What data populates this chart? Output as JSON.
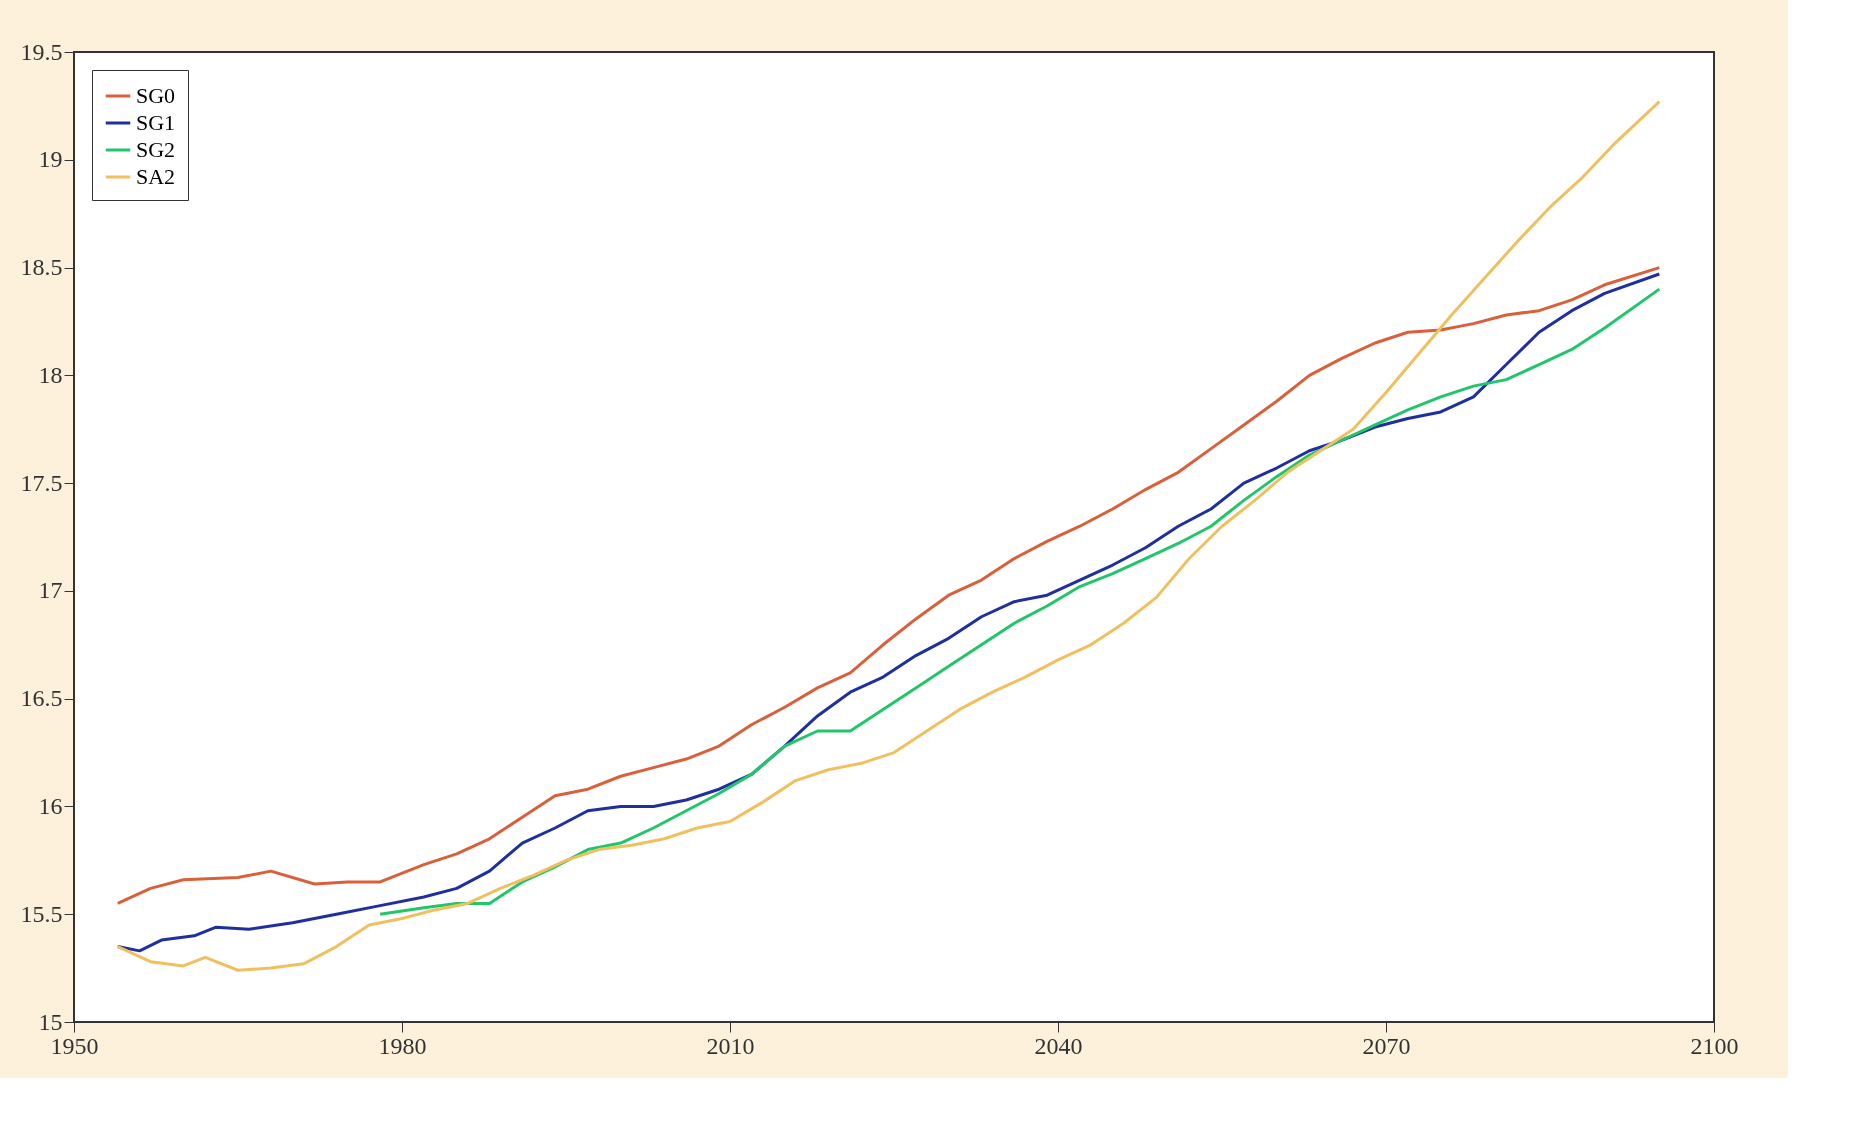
{
  "chart_data": {
    "type": "line",
    "xlim": [
      1950,
      2100
    ],
    "ylim": [
      15,
      19.5
    ],
    "xticks": [
      1950,
      1980,
      2010,
      2040,
      2070,
      2100
    ],
    "yticks": [
      15,
      15.5,
      16,
      16.5,
      17,
      17.5,
      18,
      18.5,
      19,
      19.5
    ],
    "grid": false,
    "legend": "top left",
    "line_style": "solid",
    "marker": "none",
    "series": [
      {
        "name": "SG0",
        "color": "#d9603a",
        "x": [
          1954,
          1957,
          1960,
          1965,
          1968,
          1972,
          1975,
          1978,
          1982,
          1985,
          1988,
          1991,
          1994,
          1997,
          2000,
          2003,
          2006,
          2009,
          2012,
          2015,
          2018,
          2021,
          2024,
          2027,
          2030,
          2033,
          2036,
          2039,
          2042,
          2045,
          2048,
          2051,
          2054,
          2057,
          2060,
          2063,
          2066,
          2069,
          2072,
          2075,
          2078,
          2081,
          2084,
          2087,
          2090,
          2095
        ],
        "values": [
          15.55,
          15.62,
          15.66,
          15.67,
          15.7,
          15.64,
          15.65,
          15.65,
          15.73,
          15.78,
          15.85,
          15.95,
          16.05,
          16.08,
          16.14,
          16.18,
          16.22,
          16.28,
          16.38,
          16.46,
          16.55,
          16.62,
          16.75,
          16.87,
          16.98,
          17.05,
          17.15,
          17.23,
          17.3,
          17.38,
          17.47,
          17.55,
          17.66,
          17.77,
          17.88,
          18.0,
          18.08,
          18.15,
          18.2,
          18.21,
          18.24,
          18.28,
          18.3,
          18.35,
          18.42,
          18.5
        ]
      },
      {
        "name": "SG1",
        "color": "#1f2fa0",
        "x": [
          1954,
          1956,
          1958,
          1961,
          1963,
          1966,
          1970,
          1974,
          1978,
          1982,
          1985,
          1988,
          1991,
          1994,
          1997,
          2000,
          2003,
          2006,
          2009,
          2012,
          2015,
          2018,
          2021,
          2024,
          2027,
          2030,
          2033,
          2036,
          2039,
          2042,
          2045,
          2048,
          2051,
          2054,
          2057,
          2060,
          2063,
          2066,
          2069,
          2072,
          2075,
          2078,
          2081,
          2084,
          2087,
          2090,
          2095
        ],
        "values": [
          15.35,
          15.33,
          15.38,
          15.4,
          15.44,
          15.43,
          15.46,
          15.5,
          15.54,
          15.58,
          15.62,
          15.7,
          15.83,
          15.9,
          15.98,
          16.0,
          16.0,
          16.03,
          16.08,
          16.15,
          16.28,
          16.42,
          16.53,
          16.6,
          16.7,
          16.78,
          16.88,
          16.95,
          16.98,
          17.05,
          17.12,
          17.2,
          17.3,
          17.38,
          17.5,
          17.57,
          17.65,
          17.7,
          17.76,
          17.8,
          17.83,
          17.9,
          18.05,
          18.2,
          18.3,
          18.38,
          18.47
        ]
      },
      {
        "name": "SG2",
        "color": "#22c66a",
        "x": [
          1978,
          1982,
          1985,
          1988,
          1991,
          1994,
          1997,
          2000,
          2003,
          2006,
          2009,
          2012,
          2015,
          2018,
          2021,
          2024,
          2027,
          2030,
          2033,
          2036,
          2039,
          2042,
          2045,
          2048,
          2051,
          2054,
          2057,
          2060,
          2063,
          2066,
          2069,
          2072,
          2075,
          2078,
          2081,
          2084,
          2087,
          2090,
          2095
        ],
        "values": [
          15.5,
          15.53,
          15.55,
          15.55,
          15.65,
          15.72,
          15.8,
          15.83,
          15.9,
          15.98,
          16.06,
          16.15,
          16.28,
          16.35,
          16.35,
          16.45,
          16.55,
          16.65,
          16.75,
          16.85,
          16.93,
          17.02,
          17.08,
          17.15,
          17.22,
          17.3,
          17.42,
          17.53,
          17.63,
          17.7,
          17.77,
          17.84,
          17.9,
          17.95,
          17.98,
          18.05,
          18.12,
          18.22,
          18.4
        ]
      },
      {
        "name": "SA2",
        "color": "#f0c060",
        "x": [
          1954,
          1957,
          1960,
          1962,
          1965,
          1968,
          1971,
          1974,
          1977,
          1980,
          1983,
          1986,
          1989,
          1992,
          1995,
          1998,
          2001,
          2004,
          2007,
          2010,
          2013,
          2016,
          2019,
          2022,
          2025,
          2028,
          2031,
          2034,
          2037,
          2040,
          2043,
          2046,
          2049,
          2052,
          2055,
          2058,
          2061,
          2064,
          2067,
          2070,
          2073,
          2076,
          2079,
          2082,
          2085,
          2088,
          2091,
          2095
        ],
        "values": [
          15.35,
          15.28,
          15.26,
          15.3,
          15.24,
          15.25,
          15.27,
          15.35,
          15.45,
          15.48,
          15.52,
          15.55,
          15.62,
          15.68,
          15.75,
          15.8,
          15.82,
          15.85,
          15.9,
          15.93,
          16.02,
          16.12,
          16.17,
          16.2,
          16.25,
          16.35,
          16.45,
          16.53,
          16.6,
          16.68,
          16.75,
          16.85,
          16.97,
          17.15,
          17.3,
          17.42,
          17.55,
          17.65,
          17.75,
          17.92,
          18.1,
          18.28,
          18.45,
          18.62,
          18.78,
          18.92,
          19.08,
          19.27
        ]
      }
    ]
  }
}
